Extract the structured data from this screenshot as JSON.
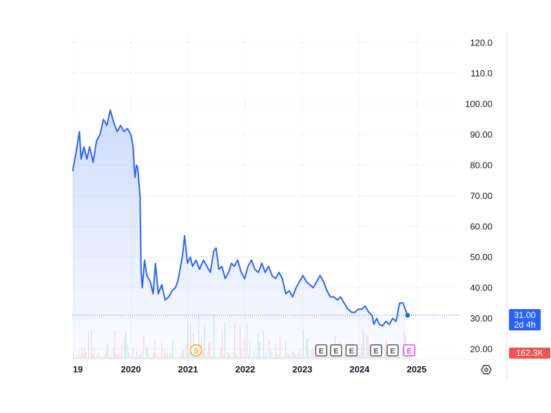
{
  "chart_data": {
    "type": "area",
    "ylim": [
      20,
      120
    ],
    "xlim": [
      2018.98,
      2025.75
    ],
    "grid": true,
    "y_ticks": [
      "20.00",
      "30.00",
      "40.00",
      "50.00",
      "60.00",
      "70.00",
      "80.00",
      "90.00",
      "100.00",
      "110.0",
      "120.0"
    ],
    "y_tick_values": [
      20,
      30,
      40,
      50,
      60,
      70,
      80,
      90,
      100,
      110,
      120
    ],
    "x_ticks": [
      "19",
      "2020",
      "2021",
      "2022",
      "2023",
      "2024",
      "2025"
    ],
    "x_tick_values": [
      2019,
      2020,
      2021,
      2022,
      2023,
      2024,
      2025
    ],
    "series": [
      {
        "x": [
          2018.98,
          2019.04,
          2019.1,
          2019.13,
          2019.18,
          2019.23,
          2019.28,
          2019.34,
          2019.4,
          2019.46,
          2019.52,
          2019.58,
          2019.64,
          2019.7,
          2019.76,
          2019.82,
          2019.88,
          2019.94,
          2020.0,
          2020.04,
          2020.07,
          2020.1,
          2020.12,
          2020.16,
          2020.18,
          2020.2,
          2020.24,
          2020.28,
          2020.34,
          2020.39,
          2020.43,
          2020.48,
          2020.54,
          2020.6,
          2020.66,
          2020.72,
          2020.78,
          2020.82,
          2020.87,
          2020.9,
          2020.94,
          2020.99,
          2021.04,
          2021.08,
          2021.14,
          2021.2,
          2021.27,
          2021.33,
          2021.39,
          2021.45,
          2021.49,
          2021.54,
          2021.59,
          2021.65,
          2021.71,
          2021.76,
          2021.81,
          2021.87,
          2021.93,
          2021.99,
          2022.05,
          2022.11,
          2022.17,
          2022.23,
          2022.29,
          2022.35,
          2022.41,
          2022.47,
          2022.53,
          2022.59,
          2022.65,
          2022.71,
          2022.77,
          2022.83,
          2022.89,
          2022.95,
          2023.01,
          2023.07,
          2023.13,
          2023.19,
          2023.25,
          2023.31,
          2023.37,
          2023.43,
          2023.49,
          2023.55,
          2023.61,
          2023.67,
          2023.73,
          2023.8,
          2023.86,
          2023.92,
          2023.98,
          2024.04,
          2024.1,
          2024.16,
          2024.22,
          2024.25,
          2024.3,
          2024.35,
          2024.4,
          2024.46,
          2024.52,
          2024.58,
          2024.64,
          2024.7,
          2024.76,
          2024.8,
          2024.84
        ],
        "y": [
          78,
          84,
          91,
          82,
          86,
          82,
          86,
          81,
          88,
          90,
          95,
          93,
          98,
          94,
          91,
          93,
          91,
          92,
          90,
          86,
          76,
          80,
          79,
          70,
          45,
          40,
          49,
          44,
          42,
          38,
          48,
          38,
          41,
          36,
          37,
          39,
          40,
          42,
          47,
          50,
          57,
          48,
          50,
          47,
          49,
          46,
          49,
          47,
          45,
          52,
          53,
          46,
          47,
          43,
          45,
          48,
          47,
          49,
          45,
          43,
          47,
          49,
          46,
          45,
          48,
          45,
          47,
          44,
          43,
          45,
          43,
          38,
          39,
          37,
          40,
          42,
          44,
          42,
          41,
          40,
          42,
          44,
          42,
          39,
          37,
          37,
          36,
          37,
          35,
          33,
          32,
          32,
          33,
          33,
          34,
          32,
          31,
          28,
          30,
          28,
          27.5,
          29,
          28,
          30,
          29,
          35,
          35,
          33,
          31
        ]
      }
    ],
    "line_color": "#2962ff",
    "last_price": {
      "value": "31.00",
      "countdown": "2d 4h",
      "color": "#2962ff"
    },
    "volume_label": {
      "value": "162.3K",
      "color": "#ef5350"
    },
    "events": [
      {
        "label": "S",
        "x": 2021.14,
        "color": "#f7a21b"
      },
      {
        "label": "E",
        "x": 2023.33,
        "color": "#555555"
      },
      {
        "label": "E",
        "x": 2023.59,
        "color": "#555555"
      },
      {
        "label": "E",
        "x": 2023.86,
        "color": "#555555"
      },
      {
        "label": "E",
        "x": 2024.29,
        "color": "#555555"
      },
      {
        "label": "E",
        "x": 2024.58,
        "color": "#555555"
      },
      {
        "label": "E",
        "x": 2024.87,
        "color": "#e040fb"
      }
    ]
  },
  "settings_icon": "hexagon-gear-icon"
}
